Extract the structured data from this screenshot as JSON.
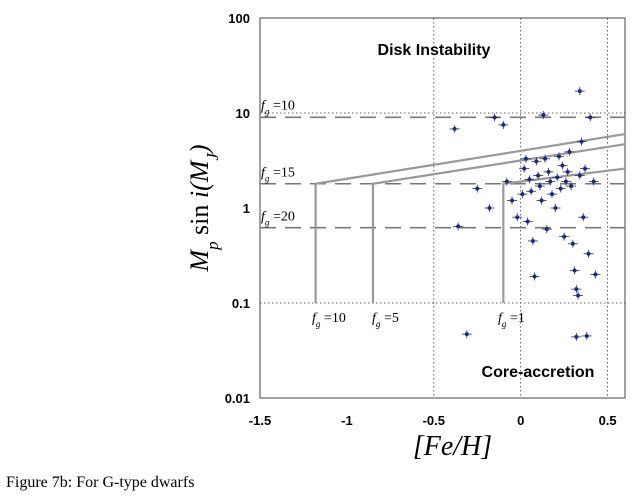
{
  "caption": "Figure 7b: For G-type dwarfs",
  "chart_data": {
    "type": "scatter",
    "title": "",
    "xlabel": "[Fe/H]",
    "ylabel": "M_p sin i(M_J)",
    "xlim": [
      -1.5,
      0.6
    ],
    "ylim": [
      0.01,
      100
    ],
    "yscale": "log",
    "x_ticks": [
      "-1.5",
      "-1",
      "-0.5",
      "0",
      "0.5"
    ],
    "y_ticks": [
      "0.01",
      "0.1",
      "1",
      "10",
      "100"
    ],
    "grid": "dotted lines at x=-0.5, 0, 0.5 and y=0.1, 10",
    "regions": [
      "Disk Instability",
      "Core-accretion"
    ],
    "fg_levels": [
      {
        "label": "f_g = 10",
        "y": 9.0
      },
      {
        "label": "f_g = 15",
        "y": 1.8
      },
      {
        "label": "f_g = 20",
        "y": 0.62
      }
    ],
    "fg_curves": [
      {
        "label": "f_g = 10",
        "x_start": -1.18,
        "y_floor": 0.1,
        "y_top": 1.8,
        "y_end": 6.0
      },
      {
        "label": "f_g = 5",
        "x_start": -0.85,
        "y_floor": 0.1,
        "y_top": 1.8,
        "y_end": 4.7
      },
      {
        "label": "f_g = 1",
        "x_start": -0.1,
        "y_floor": 0.1,
        "y_top": 1.8,
        "y_end": 2.6
      }
    ],
    "points": [
      {
        "x": -0.38,
        "y": 6.8
      },
      {
        "x": -0.36,
        "y": 0.64
      },
      {
        "x": -0.31,
        "y": 0.047
      },
      {
        "x": -0.25,
        "y": 1.6
      },
      {
        "x": -0.18,
        "y": 1.0
      },
      {
        "x": -0.15,
        "y": 9.0
      },
      {
        "x": -0.1,
        "y": 7.5
      },
      {
        "x": -0.08,
        "y": 1.9
      },
      {
        "x": -0.05,
        "y": 1.2
      },
      {
        "x": -0.02,
        "y": 0.8
      },
      {
        "x": 0.01,
        "y": 1.4
      },
      {
        "x": 0.02,
        "y": 2.6
      },
      {
        "x": 0.03,
        "y": 3.3
      },
      {
        "x": 0.04,
        "y": 0.72
      },
      {
        "x": 0.05,
        "y": 2.0
      },
      {
        "x": 0.06,
        "y": 1.5
      },
      {
        "x": 0.07,
        "y": 0.45
      },
      {
        "x": 0.08,
        "y": 0.19
      },
      {
        "x": 0.09,
        "y": 3.1
      },
      {
        "x": 0.1,
        "y": 2.2
      },
      {
        "x": 0.11,
        "y": 1.7
      },
      {
        "x": 0.12,
        "y": 1.2
      },
      {
        "x": 0.13,
        "y": 9.5
      },
      {
        "x": 0.14,
        "y": 3.3
      },
      {
        "x": 0.15,
        "y": 0.6
      },
      {
        "x": 0.16,
        "y": 2.4
      },
      {
        "x": 0.17,
        "y": 1.9
      },
      {
        "x": 0.18,
        "y": 1.4
      },
      {
        "x": 0.2,
        "y": 1.0
      },
      {
        "x": 0.21,
        "y": 2.1
      },
      {
        "x": 0.22,
        "y": 3.5
      },
      {
        "x": 0.23,
        "y": 1.6
      },
      {
        "x": 0.24,
        "y": 2.8
      },
      {
        "x": 0.25,
        "y": 0.5
      },
      {
        "x": 0.26,
        "y": 1.9
      },
      {
        "x": 0.27,
        "y": 2.4
      },
      {
        "x": 0.28,
        "y": 3.9
      },
      {
        "x": 0.29,
        "y": 1.7
      },
      {
        "x": 0.3,
        "y": 0.42
      },
      {
        "x": 0.31,
        "y": 0.22
      },
      {
        "x": 0.32,
        "y": 0.14
      },
      {
        "x": 0.33,
        "y": 0.12
      },
      {
        "x": 0.34,
        "y": 2.2
      },
      {
        "x": 0.35,
        "y": 5.0
      },
      {
        "x": 0.36,
        "y": 0.8
      },
      {
        "x": 0.37,
        "y": 2.6
      },
      {
        "x": 0.38,
        "y": 0.045
      },
      {
        "x": 0.39,
        "y": 0.33
      },
      {
        "x": 0.4,
        "y": 9.0
      },
      {
        "x": 0.42,
        "y": 1.9
      },
      {
        "x": 0.43,
        "y": 0.2
      },
      {
        "x": 0.34,
        "y": 17.0
      },
      {
        "x": 0.32,
        "y": 0.044
      }
    ]
  }
}
